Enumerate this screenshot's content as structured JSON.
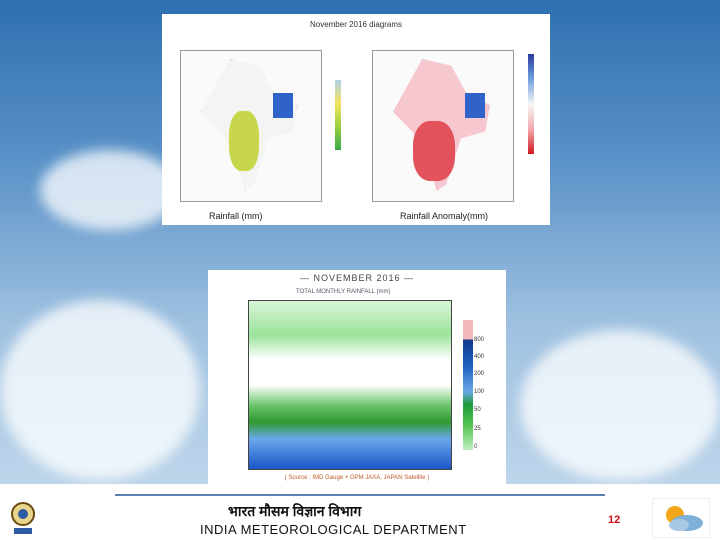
{
  "slide": {
    "top_panel": {
      "title": "November 2016 diagrams",
      "caption_left": "Rainfall (mm)",
      "caption_right": "Rainfall Anomaly(mm)"
    },
    "bottom_panel": {
      "title": "— NOVEMBER 2016 —",
      "subtitle": "TOTAL MONTHLY RAINFALL (mm)",
      "colorbar_values": [
        "800",
        "400",
        "200",
        "100",
        "50",
        "25",
        "0"
      ],
      "source": "( Source : IMD Gauge + GPM JAXA, JAPAN Satellite )"
    },
    "footer": {
      "hindi_title": "भारत मौसम विज्ञान विभाग",
      "dept_name": "INDIA METEOROLOGICAL DEPARTMENT",
      "page_number": "12"
    }
  }
}
